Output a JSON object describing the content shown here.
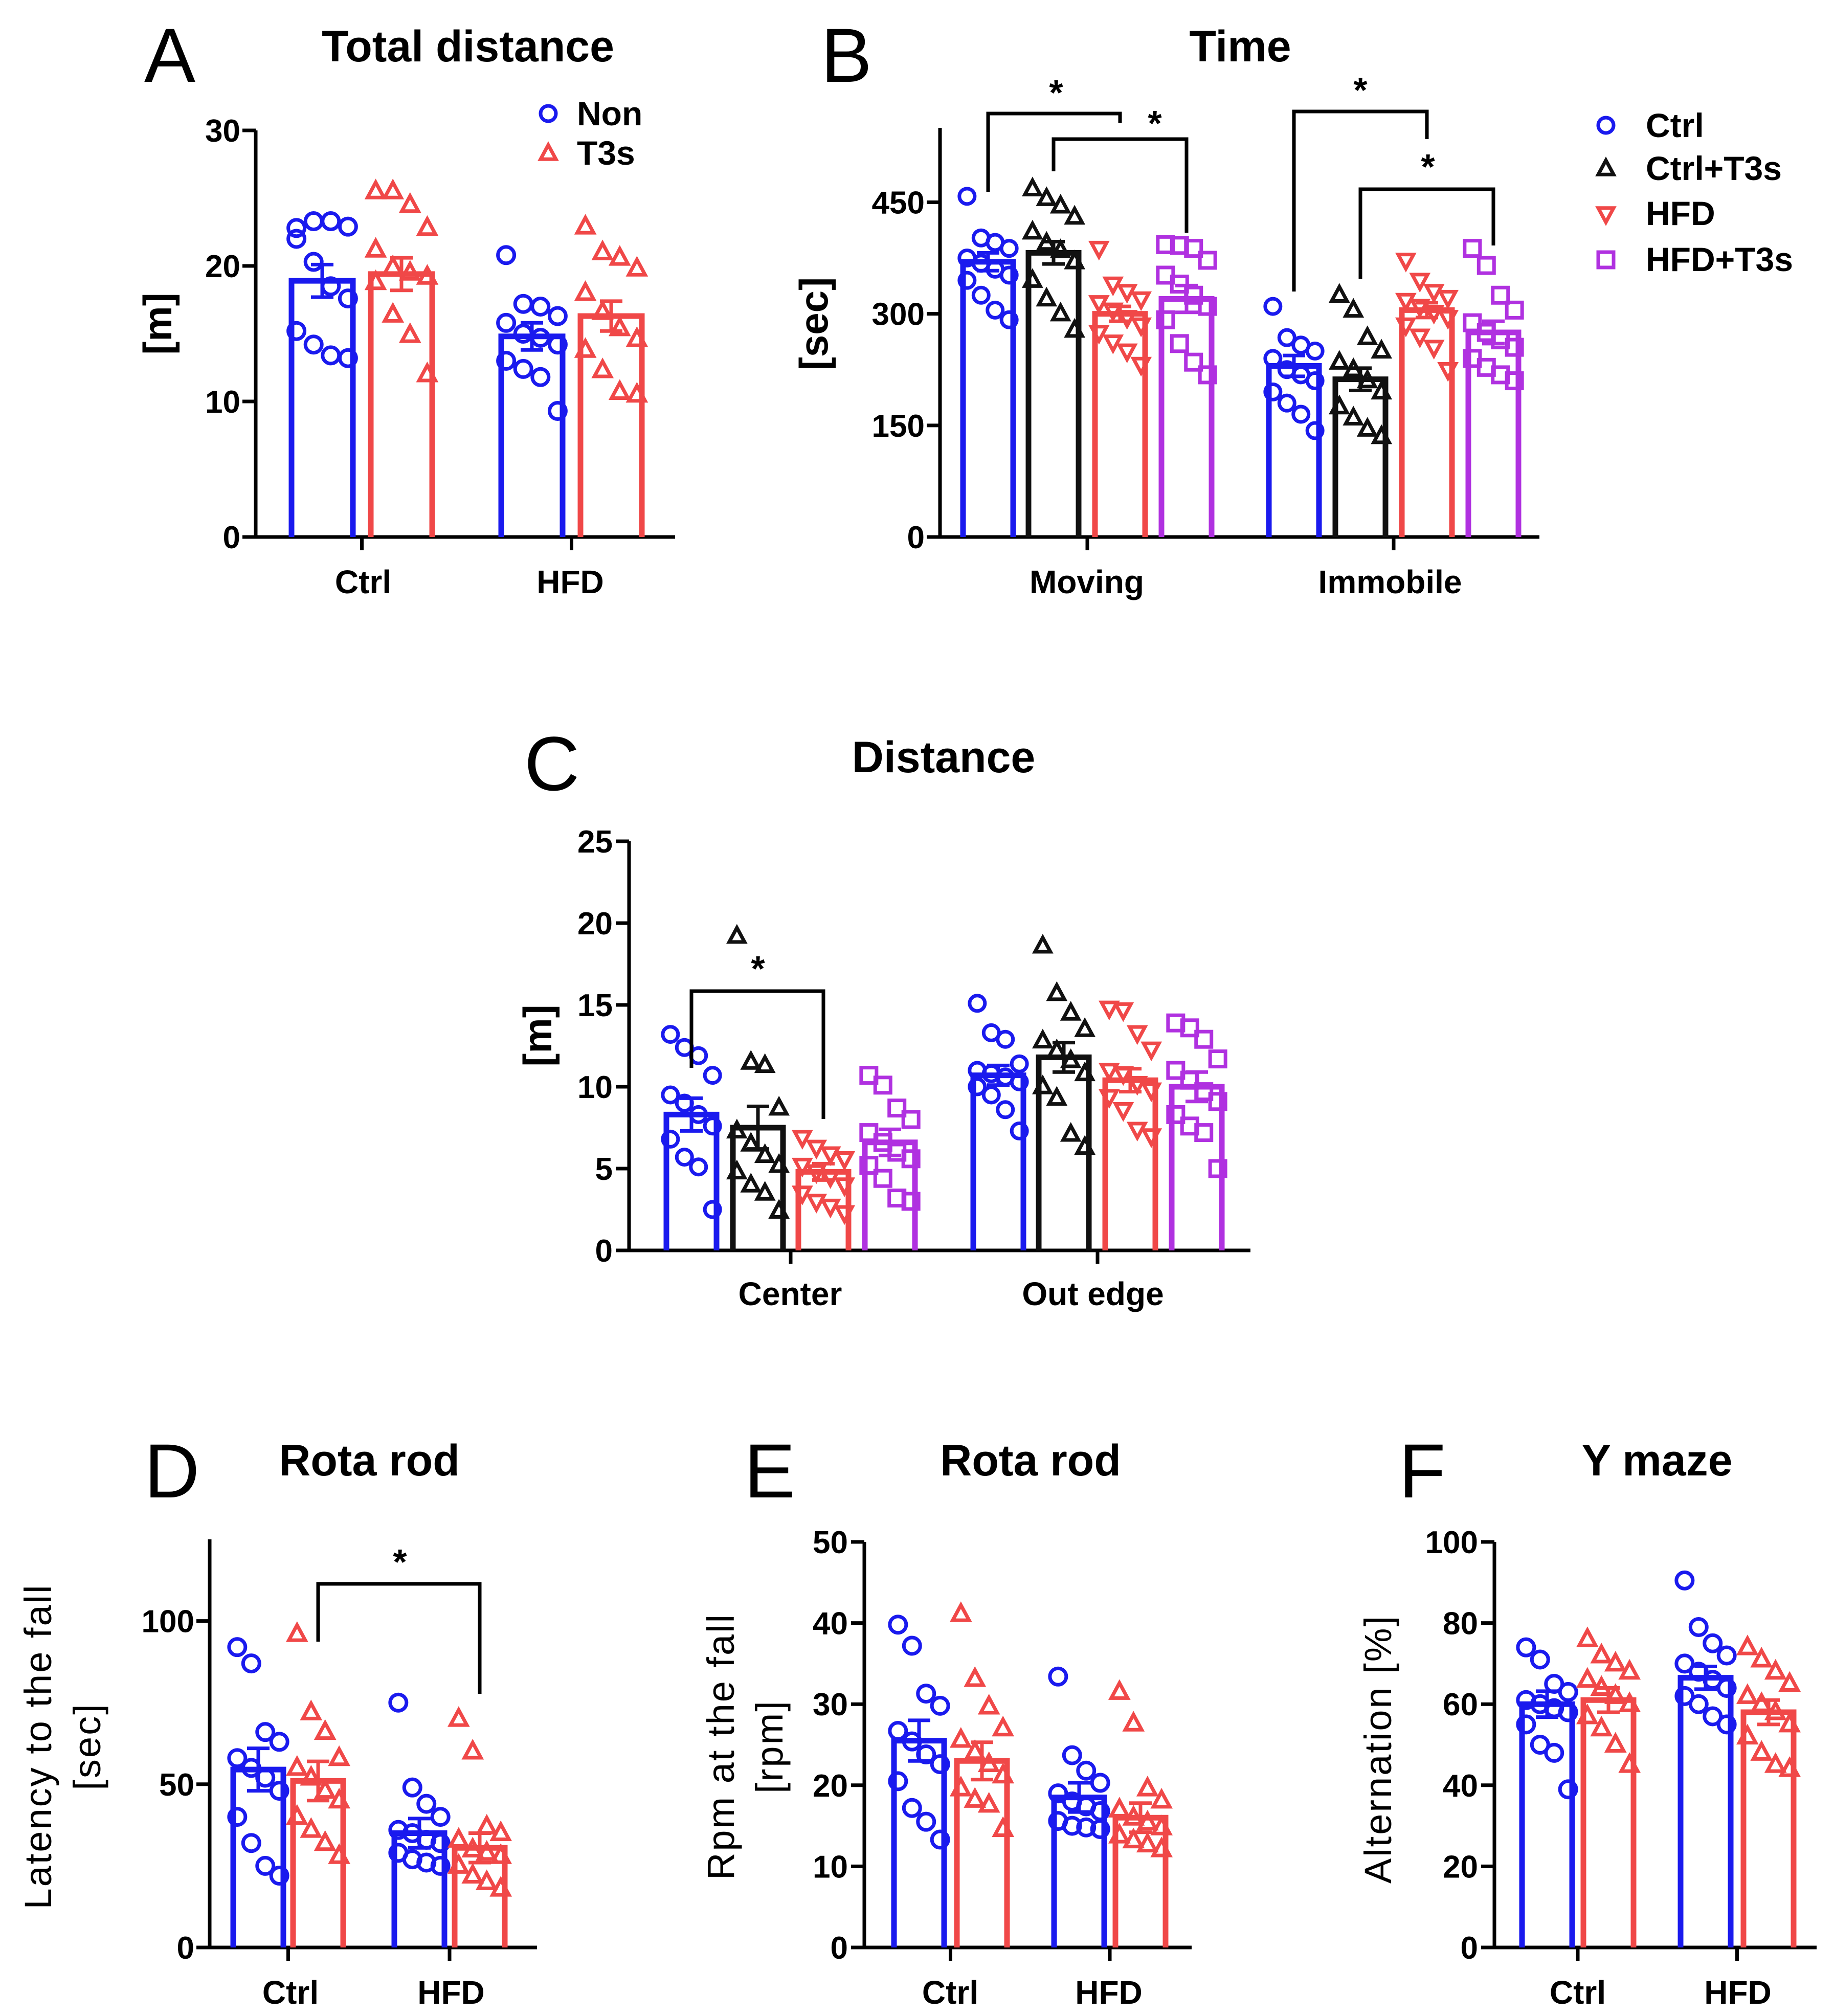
{
  "colors": {
    "Ctrl": "#1a1aee",
    "Non": "#1a1aee",
    "Ctrl+T3s": "#111111",
    "HFD": "#f04848",
    "T3s": "#f04848",
    "HFD+T3s": "#b031e0"
  },
  "markers": {
    "Ctrl": "circle",
    "Non": "circle",
    "Ctrl+T3s": "triangle-up",
    "HFD": "triangle-down",
    "T3s": "triangle-up",
    "HFD+T3s": "square"
  },
  "chart_data": [
    {
      "panel": "A",
      "type": "bar",
      "title": "Total distance",
      "ylabel": "[m]",
      "ylim": [
        0,
        30
      ],
      "yticks": [
        0,
        10,
        20,
        30
      ],
      "categories": [
        "Ctrl",
        "HFD"
      ],
      "legend": [
        "Non",
        "T3s"
      ],
      "legend_position": "top-right",
      "series": [
        {
          "name": "Non",
          "means": [
            18.9,
            14.8
          ],
          "sems": [
            1.2,
            1.0
          ],
          "points": [
            [
              22.8,
              23.3,
              23.3,
              22.9,
              22.0,
              20.3,
              18.5,
              17.6,
              15.2,
              14.2,
              13.4,
              13.2
            ],
            [
              20.8,
              17.2,
              17.0,
              16.3,
              15.8,
              15.0,
              14.7,
              14.2,
              13.0,
              12.4,
              11.8,
              9.3
            ]
          ]
        },
        {
          "name": "T3s",
          "means": [
            19.4,
            16.3
          ],
          "sems": [
            1.2,
            1.1
          ],
          "points": [
            [
              25.5,
              25.5,
              24.5,
              22.8,
              21.2,
              19.9,
              19.5,
              19.2,
              18.8,
              16.4,
              14.9,
              12.0
            ],
            [
              22.9,
              21.0,
              20.6,
              19.8,
              18.0,
              16.6,
              15.4,
              14.6,
              13.8,
              12.3,
              10.7,
              10.5
            ]
          ]
        }
      ]
    },
    {
      "panel": "B",
      "type": "bar",
      "title": "Time",
      "ylabel": "[sec]",
      "ylim": [
        0,
        550
      ],
      "yticks": [
        0,
        150,
        300,
        450
      ],
      "categories": [
        "Moving",
        "Immobile"
      ],
      "legend": [
        "Ctrl",
        "Ctrl+T3s",
        "HFD",
        "HFD+T3s"
      ],
      "legend_position": "right",
      "series": [
        {
          "name": "Ctrl",
          "means": [
            370,
            230
          ],
          "sems": [
            12,
            14
          ],
          "points": [
            [
              458,
              402,
              396,
              388,
              375,
              368,
              360,
              352,
              345,
              325,
              305,
              292
            ],
            [
              310,
              268,
              258,
              250,
              240,
              225,
              218,
              210,
              195,
              180,
              165,
              143
            ]
          ]
        },
        {
          "name": "Ctrl+T3s",
          "means": [
            382,
            212
          ],
          "sems": [
            15,
            15
          ],
          "points": [
            [
              468,
              455,
              445,
              430,
              410,
              395,
              385,
              370,
              345,
              320,
              300,
              278
            ],
            [
              325,
              305,
              268,
              250,
              235,
              225,
              210,
              195,
              175,
              160,
              145,
              135
            ]
          ]
        },
        {
          "name": "HFD",
          "means": [
            300,
            305
          ],
          "sems": [
            10,
            10
          ],
          "points": [
            [
              388,
              340,
              330,
              320,
              315,
              305,
              295,
              285,
              275,
              262,
              250,
              232
            ],
            [
              372,
              345,
              330,
              322,
              318,
              310,
              302,
              295,
              285,
              270,
              255,
              225
            ]
          ]
        },
        {
          "name": "HFD+T3s",
          "means": [
            320,
            275
          ],
          "sems": [
            18,
            15
          ],
          "points": [
            [
              393,
              392,
              388,
              372,
              352,
              340,
              325,
              310,
              292,
              260,
              235,
              218
            ],
            [
              388,
              365,
              325,
              305,
              288,
              275,
              265,
              255,
              240,
              228,
              218,
              210
            ]
          ]
        }
      ],
      "annotations": [
        "*",
        "*",
        "*",
        "*"
      ]
    },
    {
      "panel": "C",
      "type": "bar",
      "title": "Distance",
      "ylabel": "[m]",
      "ylim": [
        0,
        25
      ],
      "yticks": [
        0,
        5,
        10,
        15,
        20,
        25
      ],
      "categories": [
        "Center",
        "Out edge"
      ],
      "series": [
        {
          "name": "Ctrl",
          "means": [
            8.3,
            10.7
          ],
          "sems": [
            1.0,
            0.6
          ],
          "points": [
            [
              13.2,
              12.4,
              11.9,
              10.7,
              9.5,
              9.0,
              8.3,
              7.6,
              6.8,
              5.7,
              5.1,
              2.5
            ],
            [
              15.1,
              13.3,
              12.9,
              11.4,
              11.0,
              10.8,
              10.6,
              10.3,
              10.0,
              9.5,
              8.6,
              7.3
            ]
          ]
        },
        {
          "name": "Ctrl+T3s",
          "means": [
            7.5,
            11.8
          ],
          "sems": [
            1.3,
            0.9
          ],
          "points": [
            [
              19.2,
              11.5,
              11.3,
              8.7,
              7.3,
              6.5,
              5.8,
              5.2,
              4.8,
              4.0,
              3.5,
              2.4
            ],
            [
              18.6,
              15.7,
              14.5,
              13.5,
              12.8,
              12.2,
              11.6,
              10.8,
              10.0,
              9.3,
              7.1,
              6.3
            ]
          ]
        },
        {
          "name": "HFD",
          "means": [
            4.8,
            10.4
          ],
          "sems": [
            0.5,
            0.7
          ],
          "points": [
            [
              6.9,
              6.3,
              5.9,
              5.6,
              5.2,
              4.8,
              4.5,
              4.0,
              3.5,
              3.0,
              2.7,
              2.3
            ],
            [
              14.8,
              14.7,
              13.3,
              12.3,
              11.0,
              10.8,
              10.2,
              9.8,
              9.4,
              8.6,
              7.4,
              7.0
            ]
          ]
        },
        {
          "name": "HFD+T3s",
          "means": [
            6.6,
            10.0
          ],
          "sems": [
            0.8,
            0.9
          ],
          "points": [
            [
              10.7,
              10.1,
              8.7,
              8.0,
              7.2,
              6.6,
              6.0,
              5.6,
              5.2,
              4.4,
              3.2,
              3.0
            ],
            [
              13.9,
              13.6,
              12.9,
              11.7,
              11.0,
              10.4,
              9.7,
              9.1,
              8.3,
              7.6,
              7.2,
              5.0
            ]
          ]
        }
      ],
      "annotations": [
        "*"
      ]
    },
    {
      "panel": "D",
      "type": "bar",
      "title": "Rota rod",
      "ylabel_line1": "Latency to the fall",
      "ylabel_line2": "[sec]",
      "ylim": [
        0,
        125
      ],
      "yticks": [
        0,
        50,
        100
      ],
      "categories": [
        "Ctrl",
        "HFD"
      ],
      "series": [
        {
          "name": "Non",
          "means": [
            54.5,
            35.0
          ],
          "sems": [
            6.5,
            4.5
          ],
          "points": [
            [
              92,
              87,
              66,
              63,
              58,
              55,
              52,
              48,
              40,
              32,
              25,
              22
            ],
            [
              75,
              49,
              44,
              40,
              36,
              35,
              33,
              32,
              29,
              27,
              26,
              25
            ]
          ]
        },
        {
          "name": "T3s",
          "means": [
            51.0,
            30.5
          ],
          "sems": [
            6.0,
            4.5
          ],
          "points": [
            [
              96,
              72,
              66,
              58,
              55,
              52,
              48,
              45,
              40,
              36,
              32,
              28
            ],
            [
              70,
              60,
              37,
              35,
              33,
              30,
              29,
              28,
              25,
              22,
              20,
              18
            ]
          ]
        }
      ],
      "annotations": [
        "*"
      ]
    },
    {
      "panel": "E",
      "type": "bar",
      "title": "Rota rod",
      "ylabel_line1": "Rpm at the fall",
      "ylabel_line2": "[rpm]",
      "ylim": [
        0,
        50
      ],
      "yticks": [
        0,
        10,
        20,
        30,
        40,
        50
      ],
      "categories": [
        "Ctrl",
        "HFD"
      ],
      "series": [
        {
          "name": "Non",
          "means": [
            25.5,
            18.5
          ],
          "sems": [
            2.5,
            1.8
          ],
          "points": [
            [
              39.8,
              37.2,
              31.3,
              29.8,
              26.7,
              25.4,
              23.8,
              22.6,
              20.5,
              17.2,
              15.5,
              13.3
            ],
            [
              33.4,
              23.7,
              21.8,
              20.3,
              19.0,
              18.0,
              17.4,
              16.8,
              15.6,
              15.0,
              14.8,
              14.6
            ]
          ]
        },
        {
          "name": "T3s",
          "means": [
            23.0,
            16.0
          ],
          "sems": [
            2.3,
            1.8
          ],
          "points": [
            [
              41.1,
              33.1,
              29.7,
              27.0,
              25.6,
              24.1,
              22.6,
              21.2,
              19.6,
              18.2,
              17.6,
              14.6
            ],
            [
              31.5,
              27.6,
              19.6,
              18.1,
              17.0,
              16.0,
              15.4,
              14.8,
              13.8,
              13.2,
              12.7,
              12.1
            ]
          ]
        }
      ]
    },
    {
      "panel": "F",
      "type": "bar",
      "title": "Y maze",
      "ylabel": "Alternation [%]",
      "ylim": [
        0,
        100
      ],
      "yticks": [
        0,
        20,
        40,
        60,
        80,
        100
      ],
      "categories": [
        "Ctrl",
        "HFD"
      ],
      "series": [
        {
          "name": "Non",
          "means": [
            60.0,
            66.5
          ],
          "sems": [
            3.2,
            2.8
          ],
          "points": [
            [
              74,
              71,
              65,
              63,
              61,
              60,
              59,
              58,
              55,
              50,
              48,
              39
            ],
            [
              90.5,
              79,
              75,
              72,
              70,
              68,
              66,
              64,
              62,
              60,
              57,
              55
            ]
          ]
        },
        {
          "name": "T3s",
          "means": [
            61.0,
            58.0
          ],
          "sems": [
            3.0,
            3.0
          ],
          "points": [
            [
              76,
              72,
              70,
              68,
              66,
              64,
              62,
              60,
              57,
              54,
              50,
              45
            ],
            [
              74,
              71,
              68,
              65,
              62,
              60,
              58,
              55,
              52,
              48,
              45,
              44
            ]
          ]
        }
      ],
      "annotations": []
    }
  ]
}
